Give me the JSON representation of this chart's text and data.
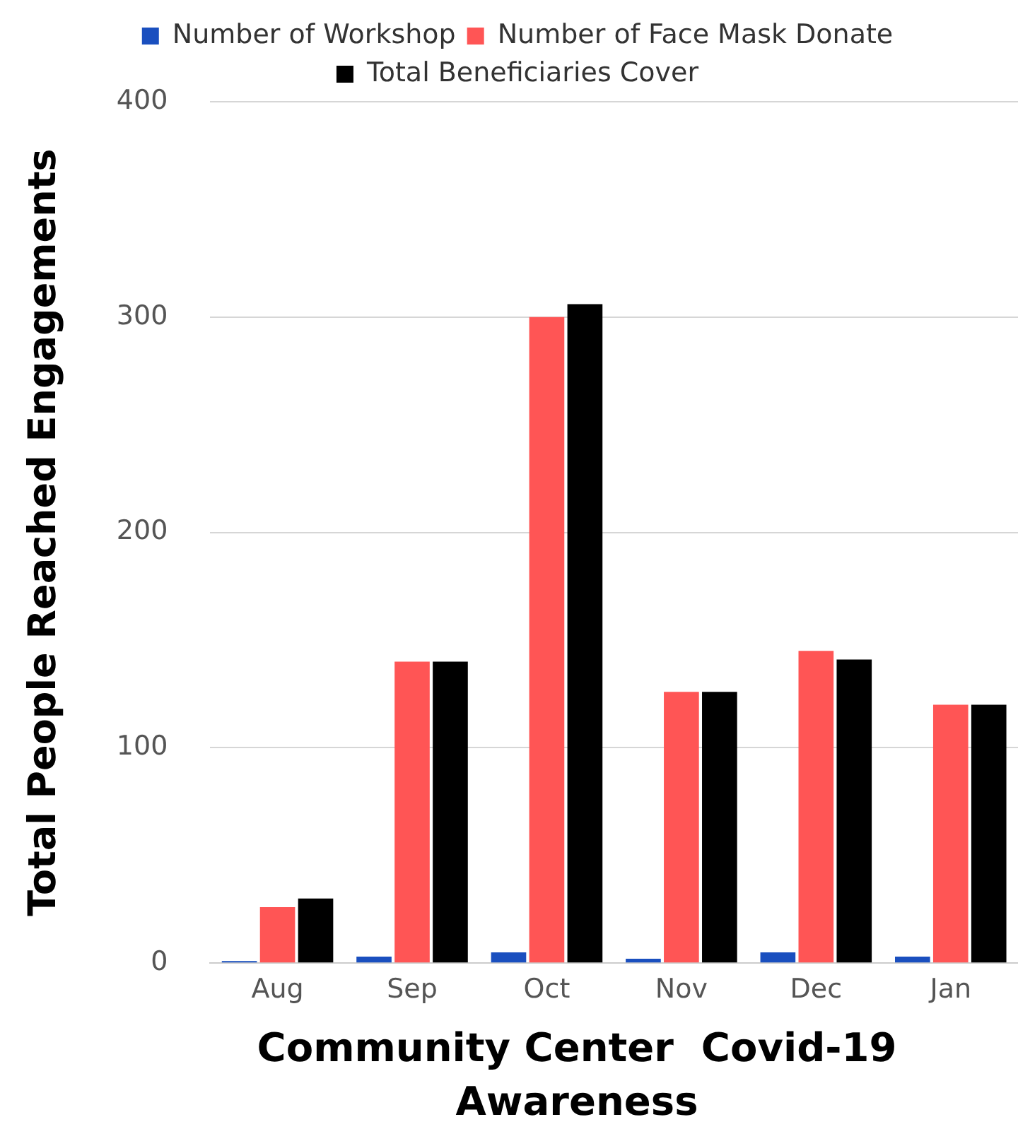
{
  "chart_data": {
    "type": "bar",
    "xlabel": "Community Center  Covid-19 Awareness",
    "ylabel": "Total People Reached Engagements",
    "categories": [
      "Aug",
      "Sep",
      "Oct",
      "Nov",
      "Dec",
      "Jan"
    ],
    "series": [
      {
        "name": "Number of Workshop",
        "color": "#1a4fbf",
        "values": [
          1,
          3,
          5,
          2,
          5,
          3
        ]
      },
      {
        "name": "Number of Face Mask Donate",
        "color": "#ff5555",
        "values": [
          26,
          140,
          300,
          126,
          145,
          120
        ]
      },
      {
        "name": "Total Beneficiaries Cover",
        "color": "#000000",
        "values": [
          30,
          140,
          306,
          126,
          141,
          120
        ]
      }
    ],
    "ylim": [
      0,
      400
    ],
    "yticks": [
      0,
      100,
      200,
      300,
      400
    ],
    "grid": "y",
    "legend": "top"
  }
}
